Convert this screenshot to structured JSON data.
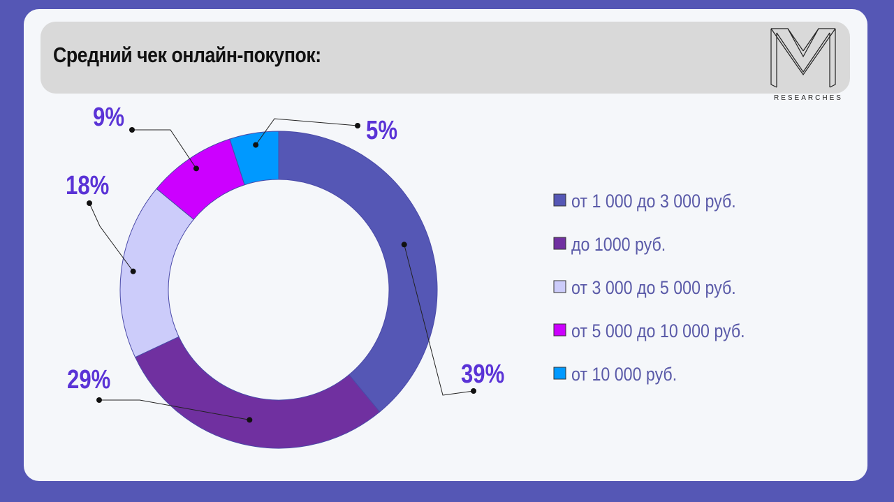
{
  "title": "Средний чек онлайн-покупок:",
  "logo_text": "RESEARCHES",
  "chart_data": {
    "type": "pie",
    "title": "Средний чек онлайн-покупок:",
    "series": [
      {
        "label": "от 1 000 до 3 000 руб.",
        "value": 39,
        "value_label": "39%",
        "color": "#5557b5"
      },
      {
        "label": "до 1000 руб.",
        "value": 29,
        "value_label": "29%",
        "color": "#7030a0"
      },
      {
        "label": "от 3 000 до 5 000 руб.",
        "value": 18,
        "value_label": "18%",
        "color": "#ccccfa"
      },
      {
        "label": "от 5 000 до 10 000 руб.",
        "value": 9,
        "value_label": "9%",
        "color": "#cc00ff"
      },
      {
        "label": "от 10 000 руб.",
        "value": 5,
        "value_label": "5%",
        "color": "#0099ff"
      }
    ],
    "legend_position": "right"
  }
}
